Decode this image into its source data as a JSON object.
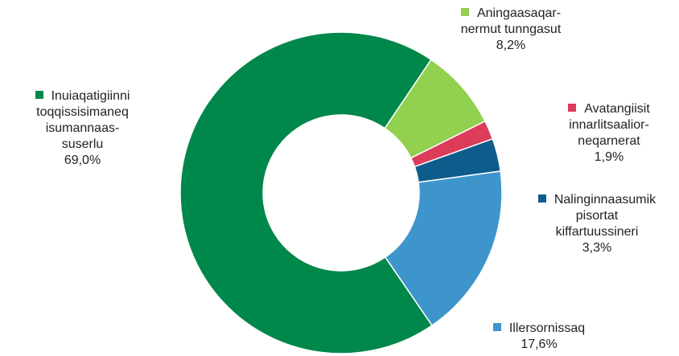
{
  "chart_data": {
    "type": "pie",
    "variant": "donut",
    "slices": [
      {
        "label_lines": [
          "Aningaasaqar-",
          "nermut tunngasut"
        ],
        "value": 8.2,
        "display": "8,2%",
        "color": "#92d050"
      },
      {
        "label_lines": [
          "Avatangiisit",
          "innarlitsaalior-",
          "neqarnerat"
        ],
        "value": 1.9,
        "display": "1,9%",
        "color": "#dc3b5a"
      },
      {
        "label_lines": [
          "Nalinginnaasumik",
          "pisortat",
          "kiffartuussineri"
        ],
        "value": 3.3,
        "display": "3,3%",
        "color": "#0e5c8c"
      },
      {
        "label_lines": [
          "Illersornissaq"
        ],
        "value": 17.6,
        "display": "17,6%",
        "color": "#3d95cc"
      },
      {
        "label_lines": [
          "Inuiaqatigiinni",
          "toqqissisimaneq",
          "isumannaas-",
          "suserlu"
        ],
        "value": 69.0,
        "display": "69,0%",
        "color": "#00874a"
      }
    ],
    "start_angle_deg": 34
  }
}
